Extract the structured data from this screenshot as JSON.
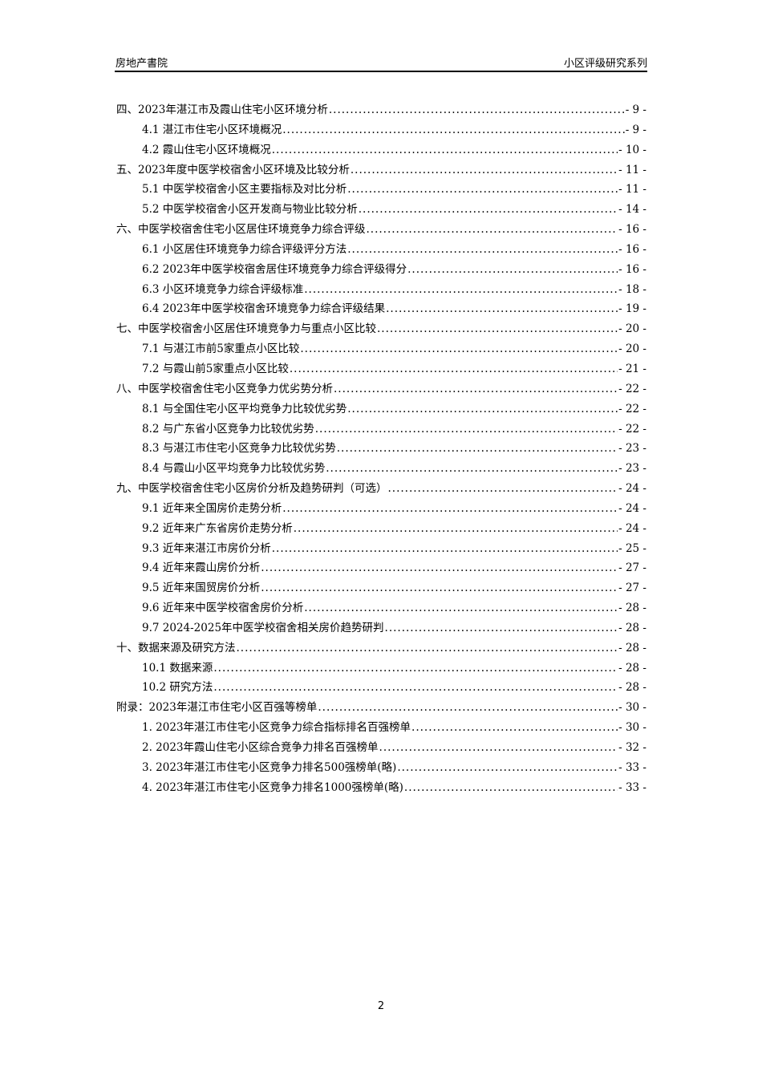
{
  "header": {
    "left": "房地产書院",
    "right": "小区评级研究系列"
  },
  "toc": [
    {
      "level": 1,
      "title": "四、2023年湛江市及霞山住宅小区环境分析",
      "page": "- 9 -"
    },
    {
      "level": 2,
      "title": "4.1 湛江市住宅小区环境概况",
      "page": "- 9 -"
    },
    {
      "level": 2,
      "title": "4.2 霞山住宅小区环境概况",
      "page": "- 10 -"
    },
    {
      "level": 1,
      "title": "五、2023年度中医学校宿舍小区环境及比较分析",
      "page": "- 11 -"
    },
    {
      "level": 2,
      "title": "5.1 中医学校宿舍小区主要指标及对比分析",
      "page": "- 11 -"
    },
    {
      "level": 2,
      "title": "5.2 中医学校宿舍小区开发商与物业比较分析",
      "page": "- 14 -"
    },
    {
      "level": 1,
      "title": "六、中医学校宿舍住宅小区居住环境竞争力综合评级",
      "page": "- 16 -"
    },
    {
      "level": 2,
      "title": "6.1 小区居住环境竞争力综合评级评分方法",
      "page": "- 16 -"
    },
    {
      "level": 2,
      "title": "6.2 2023年中医学校宿舍居住环境竞争力综合评级得分",
      "page": "- 16 -"
    },
    {
      "level": 2,
      "title": "6.3 小区环境竞争力综合评级标准",
      "page": "- 18 -"
    },
    {
      "level": 2,
      "title": "6.4 2023年中医学校宿舍环境竞争力综合评级结果",
      "page": "- 19 -"
    },
    {
      "level": 1,
      "title": "七、中医学校宿舍小区居住环境竞争力与重点小区比较",
      "page": "- 20 -"
    },
    {
      "level": 2,
      "title": "7.1 与湛江市前5家重点小区比较",
      "page": "- 20 -"
    },
    {
      "level": 2,
      "title": "7.2 与霞山前5家重点小区比较",
      "page": "- 21 -"
    },
    {
      "level": 1,
      "title": "八、中医学校宿舍住宅小区竞争力优劣势分析",
      "page": "- 22 -"
    },
    {
      "level": 2,
      "title": "8.1 与全国住宅小区平均竞争力比较优劣势",
      "page": "- 22 -"
    },
    {
      "level": 2,
      "title": "8.2 与广东省小区竞争力比较优劣势",
      "page": "- 22 -"
    },
    {
      "level": 2,
      "title": "8.3 与湛江市住宅小区竞争力比较优劣势",
      "page": "- 23 -"
    },
    {
      "level": 2,
      "title": "8.4 与霞山小区平均竞争力比较优劣势",
      "page": "- 23 -"
    },
    {
      "level": 1,
      "title": "九、中医学校宿舍住宅小区房价分析及趋势研判（可选）",
      "page": "- 24 -"
    },
    {
      "level": 2,
      "title": "9.1 近年来全国房价走势分析",
      "page": "- 24 -"
    },
    {
      "level": 2,
      "title": "9.2 近年来广东省房价走势分析",
      "page": "- 24 -"
    },
    {
      "level": 2,
      "title": "9.3 近年来湛江市房价分析",
      "page": "- 25 -"
    },
    {
      "level": 2,
      "title": "9.4 近年来霞山房价分析",
      "page": "- 27 -"
    },
    {
      "level": 2,
      "title": "9.5 近年来国贸房价分析",
      "page": "- 27 -"
    },
    {
      "level": 2,
      "title": "9.6 近年来中医学校宿舍房价分析",
      "page": "- 28 -"
    },
    {
      "level": 2,
      "title": "9.7 2024-2025年中医学校宿舍相关房价趋势研判",
      "page": "- 28 -"
    },
    {
      "level": 1,
      "title": "十、数据来源及研究方法",
      "page": "- 28 -"
    },
    {
      "level": 2,
      "title": "10.1 数据来源",
      "page": "- 28 -"
    },
    {
      "level": 2,
      "title": "10.2 研究方法",
      "page": "- 28 -"
    },
    {
      "level": 1,
      "title": "附录：2023年湛江市住宅小区百强等榜单",
      "page": "- 30 -"
    },
    {
      "level": 2,
      "title": "1.  2023年湛江市住宅小区竞争力综合指标排名百强榜单",
      "page": "- 30 -"
    },
    {
      "level": 2,
      "title": "2.  2023年霞山住宅小区综合竞争力排名百强榜单",
      "page": "- 32 -"
    },
    {
      "level": 2,
      "title": "3.  2023年湛江市住宅小区竞争力排名500强榜单(略)",
      "page": "- 33 -"
    },
    {
      "level": 2,
      "title": "4.  2023年湛江市住宅小区竞争力排名1000强榜单(略)",
      "page": "- 33 -"
    }
  ],
  "footer": {
    "page_number": "2"
  }
}
